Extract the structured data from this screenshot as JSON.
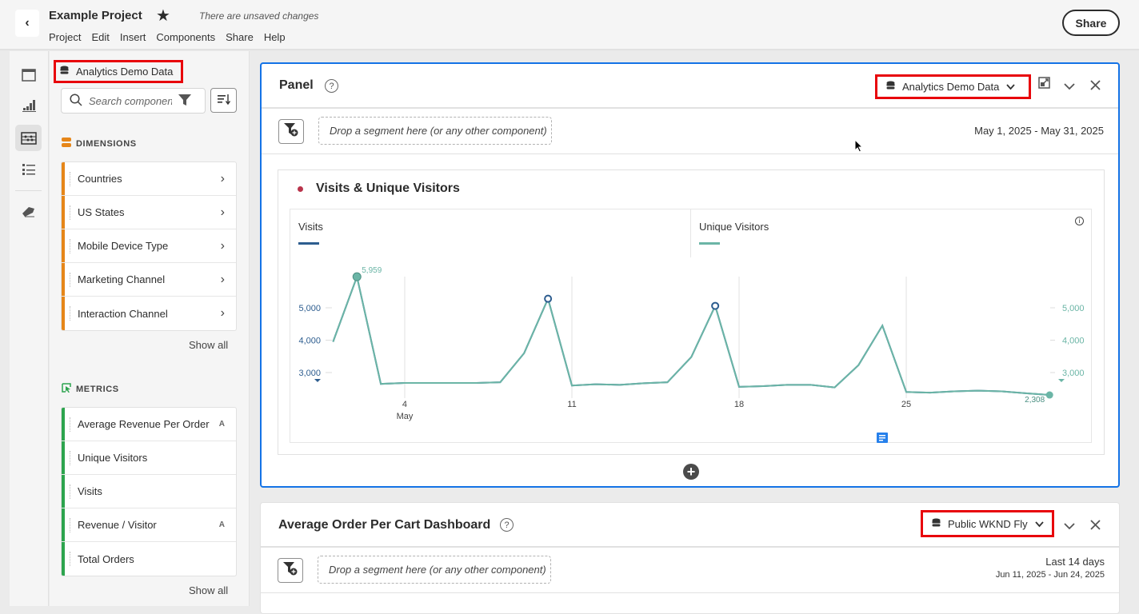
{
  "header": {
    "title": "Example Project",
    "status": "There are unsaved changes",
    "menu": [
      "Project",
      "Edit",
      "Insert",
      "Components",
      "Share",
      "Help"
    ],
    "share_label": "Share"
  },
  "rail": {
    "icons": [
      "panels-icon",
      "visualizations-icon",
      "components-icon",
      "list-icon",
      "eraser-icon"
    ]
  },
  "components": {
    "data_source": "Analytics Demo Data",
    "search_placeholder": "Search components",
    "dimensions_label": "DIMENSIONS",
    "dimensions": [
      "Countries",
      "US States",
      "Mobile Device Type",
      "Marketing Channel",
      "Interaction Channel"
    ],
    "metrics_label": "METRICS",
    "metrics": [
      {
        "label": "Average Revenue Per Order",
        "adobe": true
      },
      {
        "label": "Unique Visitors",
        "adobe": false
      },
      {
        "label": "Visits",
        "adobe": false
      },
      {
        "label": "Revenue / Visitor",
        "adobe": true
      },
      {
        "label": "Total Orders",
        "adobe": false
      }
    ],
    "show_all": "Show all",
    "adobe_glyph": "A",
    "colors": {
      "dimensions": "#e68619",
      "metrics": "#2da44e"
    }
  },
  "panel1": {
    "title": "Panel",
    "data_source": "Analytics Demo Data",
    "drop_text": "Drop a segment here (or any other component)",
    "date_range": "May 1, 2025 - May 31, 2025",
    "viz_title": "Visits & Unique Visitors"
  },
  "panel2": {
    "title": "Average Order Per Cart Dashboard",
    "data_source": "Public WKND Fly",
    "drop_text": "Drop a segment here (or any other component)",
    "date_label": "Last 14 days",
    "date_range": "Jun 11, 2025 - Jun 24, 2025"
  },
  "chart_data": {
    "type": "line",
    "x": [
      1,
      2,
      3,
      4,
      5,
      6,
      7,
      8,
      9,
      10,
      11,
      12,
      13,
      14,
      15,
      16,
      17,
      18,
      19,
      20,
      21,
      22,
      23,
      24,
      25,
      26,
      27,
      28,
      29,
      30,
      31
    ],
    "x_ticks": [
      "4",
      "11",
      "18",
      "25"
    ],
    "x_tick_values": [
      4,
      11,
      18,
      25
    ],
    "x_month_label": "May",
    "y_ticks": [
      "3,000",
      "4,000",
      "5,000"
    ],
    "y_tick_values": [
      3000,
      4000,
      5000
    ],
    "series": [
      {
        "name": "Visits",
        "color": "#2d5d8f",
        "values": [
          3950,
          5959,
          2650,
          2680,
          2680,
          2680,
          2680,
          2700,
          3600,
          5280,
          2600,
          2640,
          2620,
          2670,
          2700,
          3480,
          5060,
          2560,
          2580,
          2620,
          2620,
          2540,
          3230,
          4450,
          2400,
          2380,
          2420,
          2440,
          2420,
          2360,
          2308
        ]
      },
      {
        "name": "Unique Visitors",
        "color": "#6bb5a6",
        "values": [
          3950,
          5959,
          2650,
          2680,
          2680,
          2680,
          2680,
          2700,
          3600,
          5280,
          2600,
          2640,
          2620,
          2670,
          2700,
          3480,
          5060,
          2560,
          2580,
          2620,
          2620,
          2540,
          3230,
          4450,
          2400,
          2380,
          2420,
          2440,
          2420,
          2360,
          2308
        ]
      }
    ],
    "annotations": {
      "max_label": "5,959",
      "last_label": "2,308"
    },
    "grid": "vertical",
    "legend": "top"
  }
}
